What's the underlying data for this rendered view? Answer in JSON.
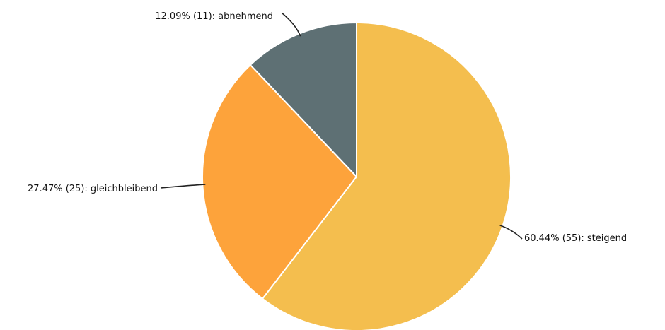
{
  "chart_data": {
    "type": "pie",
    "direction": "clockwise",
    "start": "top",
    "slices": [
      {
        "label": "steigend",
        "count": 55,
        "percent": 60.44,
        "text": "60.44% (55): steigend",
        "color": "#F4BE4E"
      },
      {
        "label": "gleichbleibend",
        "count": 25,
        "percent": 27.47,
        "text": "27.47% (25): gleichbleibend",
        "color": "#FDA33B"
      },
      {
        "label": "abnehmend",
        "count": 11,
        "percent": 12.09,
        "text": "12.09% (11): abnehmend",
        "color": "#5E7074"
      }
    ]
  }
}
